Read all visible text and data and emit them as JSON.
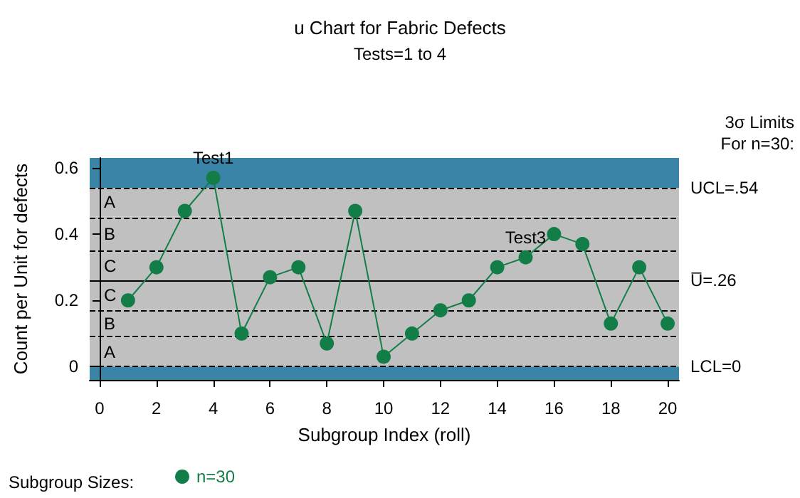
{
  "chart_data": {
    "type": "line",
    "title": "u Chart for Fabric Defects",
    "subtitle": "Tests=1 to 4",
    "xlabel": "Subgroup Index (roll)",
    "ylabel": "Count per Unit for defects",
    "legend_title": "Subgroup Sizes:",
    "x": [
      1,
      2,
      3,
      4,
      5,
      6,
      7,
      8,
      9,
      10,
      11,
      12,
      13,
      14,
      15,
      16,
      17,
      18,
      19,
      20
    ],
    "series": [
      {
        "name": "n=30",
        "color": "#137d48",
        "values": [
          0.2,
          0.3,
          0.47,
          0.57,
          0.1,
          0.27,
          0.3,
          0.07,
          0.47,
          0.03,
          0.1,
          0.17,
          0.2,
          0.3,
          0.33,
          0.4,
          0.37,
          0.13,
          0.3,
          0.13
        ]
      }
    ],
    "xlim": [
      -0.35,
      20.4
    ],
    "xticks": [
      0,
      2,
      4,
      6,
      8,
      10,
      12,
      14,
      16,
      18,
      20
    ],
    "ylim": [
      -0.04,
      0.63
    ],
    "yticks": [
      0,
      0.2,
      0.4,
      0.6
    ],
    "bands": [
      {
        "axis": "y",
        "from": -0.04,
        "to": 0,
        "color": "#3a84a8"
      },
      {
        "axis": "y",
        "from": 0,
        "to": 0.087,
        "label": "A",
        "color": "#c0c0c0"
      },
      {
        "axis": "y",
        "from": 0.087,
        "to": 0.173,
        "label": "B",
        "color": "#c0c0c0"
      },
      {
        "axis": "y",
        "from": 0.173,
        "to": 0.26,
        "label": "C",
        "color": "#c0c0c0"
      },
      {
        "axis": "y",
        "from": 0.26,
        "to": 0.347,
        "label": "C",
        "color": "#c0c0c0"
      },
      {
        "axis": "y",
        "from": 0.347,
        "to": 0.453,
        "label": "B",
        "color": "#c0c0c0"
      },
      {
        "axis": "y",
        "from": 0.453,
        "to": 0.54,
        "label": "A",
        "color": "#c0c0c0"
      },
      {
        "axis": "y",
        "from": 0.54,
        "to": 0.63,
        "color": "#3a84a8"
      }
    ],
    "ref_lines": [
      {
        "axis": "y",
        "value": 0.54,
        "label": "UCL=.54",
        "color": "#000000",
        "line_style": "dashed"
      },
      {
        "axis": "y",
        "value": 0.453,
        "color": "#000000",
        "line_style": "dashed"
      },
      {
        "axis": "y",
        "value": 0.347,
        "color": "#000000",
        "line_style": "dashed"
      },
      {
        "axis": "y",
        "value": 0.26,
        "label": "U̅=.26",
        "color": "#000000",
        "line_style": "solid"
      },
      {
        "axis": "y",
        "value": 0.173,
        "color": "#000000",
        "line_style": "dashed"
      },
      {
        "axis": "y",
        "value": 0.087,
        "color": "#000000",
        "line_style": "dashed"
      },
      {
        "axis": "y",
        "value": 0,
        "label": "LCL=0",
        "color": "#000000",
        "line_style": "dashed"
      }
    ],
    "annotations": [
      "3σ Limits",
      "For n=30:",
      {
        "text": "Test1",
        "x": 4,
        "y": 0.57
      },
      {
        "text": "Test3",
        "x": 15,
        "y": 0.33
      }
    ],
    "legend": "bottom left",
    "marker": "circle",
    "line_style": "solid",
    "grid": false
  }
}
